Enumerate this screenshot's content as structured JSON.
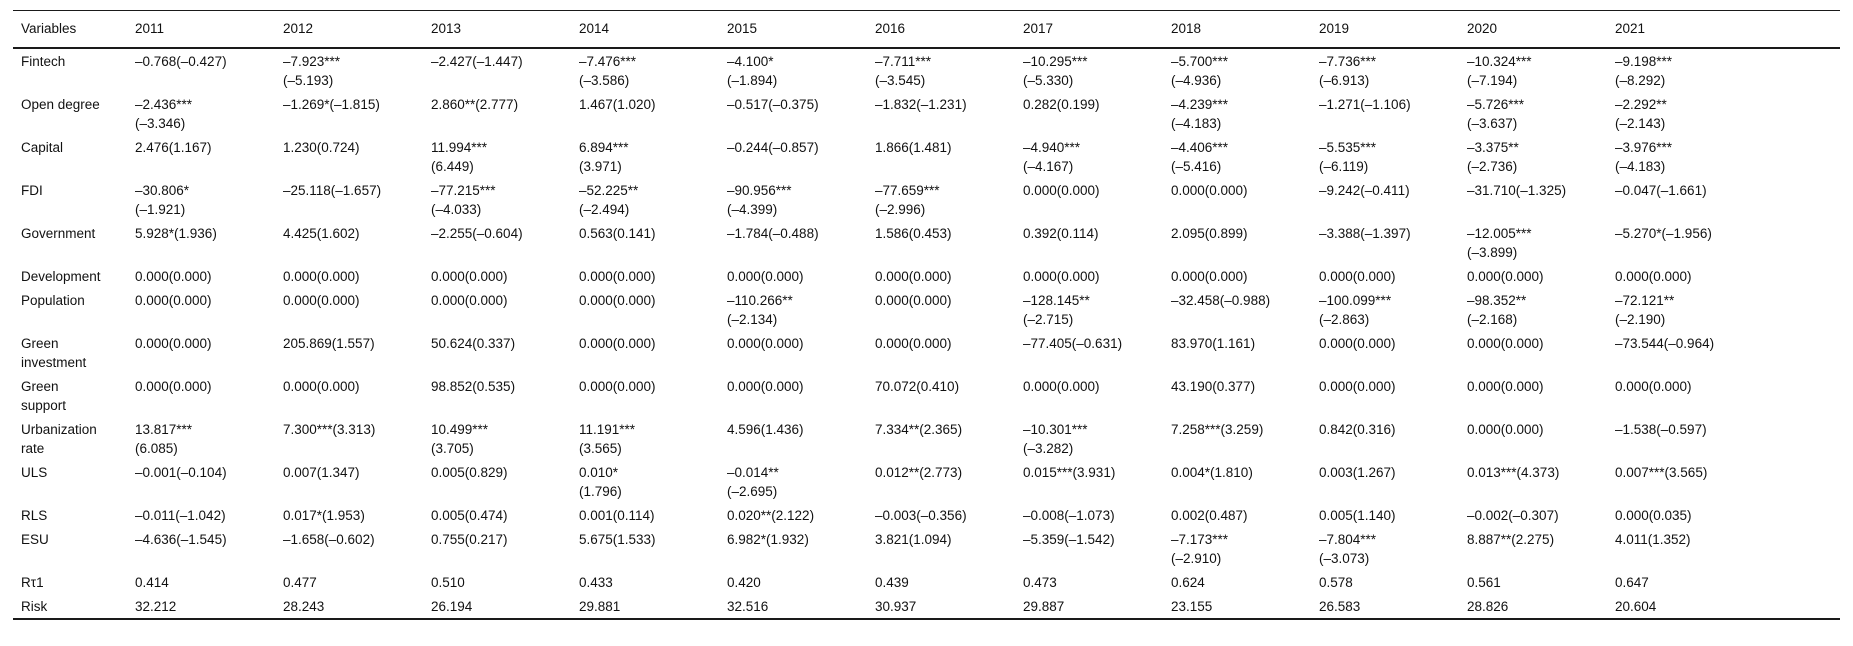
{
  "table": {
    "columns": [
      "Variables",
      "2011",
      "2012",
      "2013",
      "2014",
      "2015",
      "2016",
      "2017",
      "2018",
      "2019",
      "2020",
      "2021"
    ],
    "rows": [
      {
        "label": "Fintech",
        "cells": [
          "–0.768(–0.427)",
          "–7.923***\n(–5.193)",
          "–2.427(–1.447)",
          "–7.476***\n(–3.586)",
          "–4.100*\n(–1.894)",
          "–7.711***\n(–3.545)",
          "–10.295***\n(–5.330)",
          "–5.700***\n(–4.936)",
          "–7.736***\n(–6.913)",
          "–10.324***\n(–7.194)",
          "–9.198***\n(–8.292)"
        ]
      },
      {
        "label": "Open degree",
        "cells": [
          "–2.436***\n(–3.346)",
          "–1.269*(–1.815)",
          "2.860**(2.777)",
          "1.467(1.020)",
          "–0.517(–0.375)",
          "–1.832(–1.231)",
          "0.282(0.199)",
          "–4.239***\n(–4.183)",
          "–1.271(–1.106)",
          "–5.726***\n(–3.637)",
          "–2.292**\n(–2.143)"
        ]
      },
      {
        "label": "Capital",
        "cells": [
          "2.476(1.167)",
          "1.230(0.724)",
          "11.994***\n(6.449)",
          "6.894***\n(3.971)",
          "–0.244(–0.857)",
          "1.866(1.481)",
          "–4.940***\n(–4.167)",
          "–4.406***\n(–5.416)",
          "–5.535***\n(–6.119)",
          "–3.375**\n(–2.736)",
          "–3.976***\n(–4.183)"
        ]
      },
      {
        "label": "FDI",
        "cells": [
          "–30.806*\n(–1.921)",
          "–25.118(–1.657)",
          "–77.215***\n(–4.033)",
          "–52.225**\n(–2.494)",
          "–90.956***\n(–4.399)",
          "–77.659***\n(–2.996)",
          "0.000(0.000)",
          "0.000(0.000)",
          "–9.242(–0.411)",
          "–31.710(–1.325)",
          "–0.047(–1.661)"
        ]
      },
      {
        "label": "Government",
        "cells": [
          "5.928*(1.936)",
          "4.425(1.602)",
          "–2.255(–0.604)",
          "0.563(0.141)",
          "–1.784(–0.488)",
          "1.586(0.453)",
          "0.392(0.114)",
          "2.095(0.899)",
          "–3.388(–1.397)",
          "–12.005***\n(–3.899)",
          "–5.270*(–1.956)"
        ]
      },
      {
        "label": "Development",
        "cells": [
          "0.000(0.000)",
          "0.000(0.000)",
          "0.000(0.000)",
          "0.000(0.000)",
          "0.000(0.000)",
          "0.000(0.000)",
          "0.000(0.000)",
          "0.000(0.000)",
          "0.000(0.000)",
          "0.000(0.000)",
          "0.000(0.000)"
        ]
      },
      {
        "label": "Population",
        "cells": [
          "0.000(0.000)",
          "0.000(0.000)",
          "0.000(0.000)",
          "0.000(0.000)",
          "–110.266**\n(–2.134)",
          "0.000(0.000)",
          "–128.145**\n(–2.715)",
          "–32.458(–0.988)",
          "–100.099***\n(–2.863)",
          "–98.352**\n(–2.168)",
          "–72.121**\n(–2.190)"
        ]
      },
      {
        "label": "Green\ninvestment",
        "cells": [
          "0.000(0.000)",
          "205.869(1.557)",
          "50.624(0.337)",
          "0.000(0.000)",
          "0.000(0.000)",
          "0.000(0.000)",
          "–77.405(–0.631)",
          "83.970(1.161)",
          "0.000(0.000)",
          "0.000(0.000)",
          "–73.544(–0.964)"
        ]
      },
      {
        "label": "Green\nsupport",
        "cells": [
          "0.000(0.000)",
          "0.000(0.000)",
          "98.852(0.535)",
          "0.000(0.000)",
          "0.000(0.000)",
          "70.072(0.410)",
          "0.000(0.000)",
          "43.190(0.377)",
          "0.000(0.000)",
          "0.000(0.000)",
          "0.000(0.000)"
        ]
      },
      {
        "label": "Urbanization\nrate",
        "cells": [
          "13.817***\n(6.085)",
          "7.300***(3.313)",
          "10.499***\n(3.705)",
          "11.191***\n(3.565)",
          "4.596(1.436)",
          "7.334**(2.365)",
          "–10.301***\n(–3.282)",
          "7.258***(3.259)",
          "0.842(0.316)",
          "0.000(0.000)",
          "–1.538(–0.597)"
        ]
      },
      {
        "label": "ULS",
        "cells": [
          "–0.001(–0.104)",
          "0.007(1.347)",
          "0.005(0.829)",
          "0.010*\n(1.796)",
          "–0.014**\n(–2.695)",
          "0.012**(2.773)",
          "0.015***(3.931)",
          "0.004*(1.810)",
          "0.003(1.267)",
          "0.013***(4.373)",
          "0.007***(3.565)"
        ]
      },
      {
        "label": "RLS",
        "cells": [
          "–0.011(–1.042)",
          "0.017*(1.953)",
          "0.005(0.474)",
          "0.001(0.114)",
          "0.020**(2.122)",
          "–0.003(–0.356)",
          "–0.008(–1.073)",
          "0.002(0.487)",
          "0.005(1.140)",
          "–0.002(–0.307)",
          "0.000(0.035)"
        ]
      },
      {
        "label": "ESU",
        "cells": [
          "–4.636(–1.545)",
          "–1.658(–0.602)",
          "0.755(0.217)",
          "5.675(1.533)",
          "6.982*(1.932)",
          "3.821(1.094)",
          "–5.359(–1.542)",
          "–7.173***\n(–2.910)",
          "–7.804***\n(–3.073)",
          "8.887**(2.275)",
          "4.011(1.352)"
        ]
      },
      {
        "label": "Rτ1",
        "cells": [
          "0.414",
          "0.477",
          "0.510",
          "0.433",
          "0.420",
          "0.439",
          "0.473",
          "0.624",
          "0.578",
          "0.561",
          "0.647"
        ]
      },
      {
        "label": "Risk",
        "cells": [
          "32.212",
          "28.243",
          "26.194",
          "29.881",
          "32.516",
          "30.937",
          "29.887",
          "23.155",
          "26.583",
          "28.826",
          "20.604"
        ]
      }
    ]
  }
}
